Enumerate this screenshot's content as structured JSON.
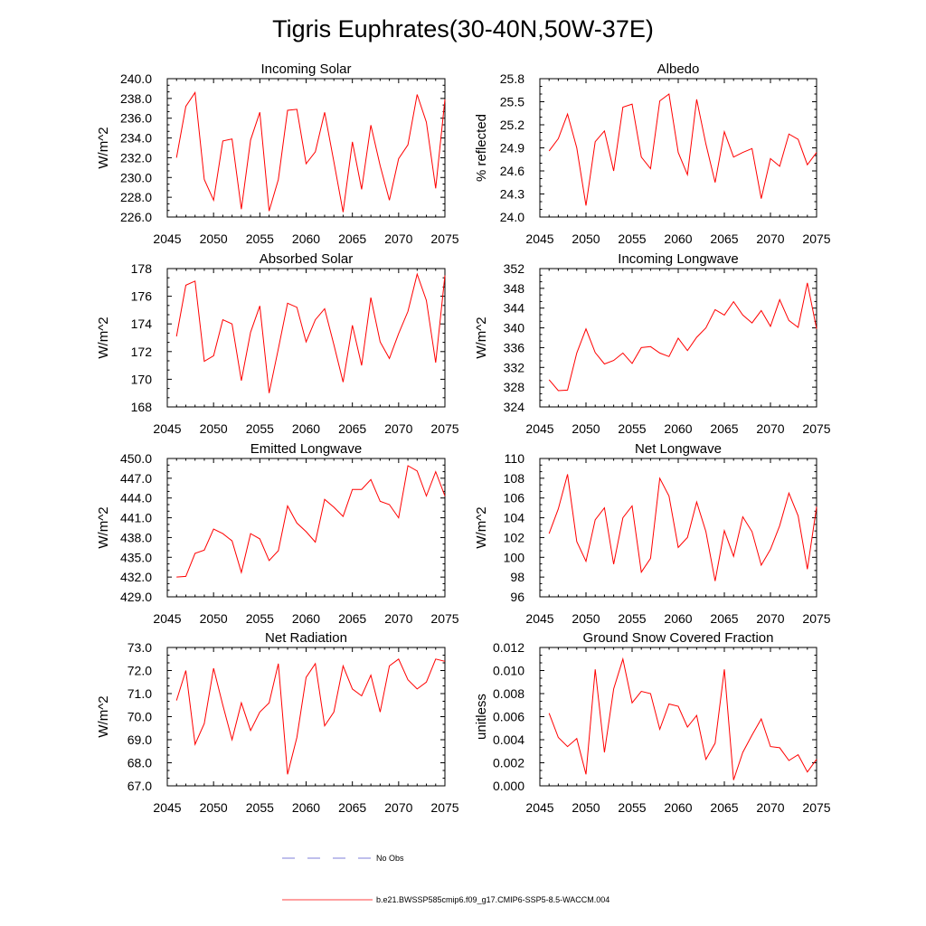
{
  "title": "Tigris Euphrates(30-40N,50W-37E)",
  "colors": {
    "model": "#ff0000",
    "obs": "#5555cc",
    "frame": "#000000"
  },
  "legend": {
    "obs_label": "No Obs",
    "model_label": "b.e21.BWSSP585cmip6.f09_g17.CMIP6-SSP5-8.5-WACCM.004"
  },
  "chart_data": [
    {
      "type": "line",
      "title": "Incoming Solar",
      "ylabel": "W/m^2",
      "xlim": [
        2045,
        2075
      ],
      "xticks": [
        2045,
        2050,
        2055,
        2060,
        2065,
        2070,
        2075
      ],
      "ylim": [
        226,
        240
      ],
      "yticks": [
        226,
        228,
        230,
        232,
        234,
        236,
        238,
        240
      ],
      "ydecimals": 1,
      "x": [
        2046,
        2047,
        2048,
        2049,
        2050,
        2051,
        2052,
        2053,
        2054,
        2055,
        2056,
        2057,
        2058,
        2059,
        2060,
        2061,
        2062,
        2063,
        2064,
        2065,
        2066,
        2067,
        2068,
        2069,
        2070,
        2071,
        2072,
        2073,
        2074,
        2075
      ],
      "values": [
        232.0,
        237.2,
        238.6,
        229.8,
        227.7,
        233.7,
        233.9,
        226.8,
        233.8,
        236.6,
        226.6,
        229.8,
        236.8,
        236.9,
        231.4,
        232.6,
        236.6,
        231.6,
        226.5,
        233.6,
        228.8,
        235.3,
        231.2,
        227.7,
        231.9,
        233.3,
        238.4,
        235.6,
        228.9,
        237.9
      ]
    },
    {
      "type": "line",
      "title": "Albedo",
      "ylabel": "% reflected",
      "xlim": [
        2045,
        2075
      ],
      "xticks": [
        2045,
        2050,
        2055,
        2060,
        2065,
        2070,
        2075
      ],
      "ylim": [
        24.0,
        25.8
      ],
      "yticks": [
        24.0,
        24.3,
        24.6,
        24.9,
        25.2,
        25.5,
        25.8
      ],
      "ydecimals": 1,
      "x": [
        2046,
        2047,
        2048,
        2049,
        2050,
        2051,
        2052,
        2053,
        2054,
        2055,
        2056,
        2057,
        2058,
        2059,
        2060,
        2061,
        2062,
        2063,
        2064,
        2065,
        2066,
        2067,
        2068,
        2069,
        2070,
        2071,
        2072,
        2073,
        2074,
        2075
      ],
      "values": [
        24.86,
        25.02,
        25.34,
        24.9,
        24.15,
        24.98,
        25.12,
        24.6,
        25.43,
        25.47,
        24.78,
        24.63,
        25.51,
        25.6,
        24.84,
        24.55,
        25.53,
        24.95,
        24.45,
        25.11,
        24.78,
        24.84,
        24.89,
        24.24,
        24.76,
        24.66,
        25.08,
        25.01,
        24.68,
        24.84
      ]
    },
    {
      "type": "line",
      "title": "Absorbed Solar",
      "ylabel": "W/m^2",
      "xlim": [
        2045,
        2075
      ],
      "xticks": [
        2045,
        2050,
        2055,
        2060,
        2065,
        2070,
        2075
      ],
      "ylim": [
        168,
        178
      ],
      "yticks": [
        168,
        170,
        172,
        174,
        176,
        178
      ],
      "ydecimals": 0,
      "x": [
        2046,
        2047,
        2048,
        2049,
        2050,
        2051,
        2052,
        2053,
        2054,
        2055,
        2056,
        2057,
        2058,
        2059,
        2060,
        2061,
        2062,
        2063,
        2064,
        2065,
        2066,
        2067,
        2068,
        2069,
        2070,
        2071,
        2072,
        2073,
        2074,
        2075
      ],
      "values": [
        173.1,
        176.8,
        177.1,
        171.3,
        171.7,
        174.3,
        174.0,
        169.9,
        173.4,
        175.3,
        169.0,
        172.2,
        175.5,
        175.2,
        172.7,
        174.3,
        175.1,
        172.5,
        169.8,
        173.9,
        171.0,
        175.9,
        172.7,
        171.5,
        173.3,
        174.9,
        177.6,
        175.7,
        171.2,
        177.5
      ]
    },
    {
      "type": "line",
      "title": "Incoming Longwave",
      "ylabel": "W/m^2",
      "xlim": [
        2045,
        2075
      ],
      "xticks": [
        2045,
        2050,
        2055,
        2060,
        2065,
        2070,
        2075
      ],
      "ylim": [
        324,
        352
      ],
      "yticks": [
        324,
        328,
        332,
        336,
        340,
        344,
        348,
        352
      ],
      "ydecimals": 0,
      "x": [
        2046,
        2047,
        2048,
        2049,
        2050,
        2051,
        2052,
        2053,
        2054,
        2055,
        2056,
        2057,
        2058,
        2059,
        2060,
        2061,
        2062,
        2063,
        2064,
        2065,
        2066,
        2067,
        2068,
        2069,
        2070,
        2071,
        2072,
        2073,
        2074,
        2075
      ],
      "values": [
        329.5,
        327.3,
        327.4,
        334.9,
        339.8,
        335.0,
        332.7,
        333.4,
        334.9,
        332.8,
        336.0,
        336.2,
        334.9,
        334.2,
        337.9,
        335.4,
        338.1,
        340.0,
        343.7,
        342.6,
        345.3,
        342.6,
        341.0,
        343.5,
        340.3,
        345.7,
        341.5,
        340.1,
        349.1,
        339.8
      ]
    },
    {
      "type": "line",
      "title": "Emitted Longwave",
      "ylabel": "W/m^2",
      "xlim": [
        2045,
        2075
      ],
      "xticks": [
        2045,
        2050,
        2055,
        2060,
        2065,
        2070,
        2075
      ],
      "ylim": [
        429,
        450
      ],
      "yticks": [
        429,
        432,
        435,
        438,
        441,
        444,
        447,
        450
      ],
      "ydecimals": 1,
      "x": [
        2046,
        2047,
        2048,
        2049,
        2050,
        2051,
        2052,
        2053,
        2054,
        2055,
        2056,
        2057,
        2058,
        2059,
        2060,
        2061,
        2062,
        2063,
        2064,
        2065,
        2066,
        2067,
        2068,
        2069,
        2070,
        2071,
        2072,
        2073,
        2074,
        2075
      ],
      "values": [
        432.0,
        432.1,
        435.6,
        436.1,
        439.3,
        438.6,
        437.5,
        432.7,
        438.6,
        437.8,
        434.5,
        436.0,
        442.8,
        440.2,
        438.9,
        437.3,
        443.8,
        442.6,
        441.2,
        445.3,
        445.3,
        446.8,
        443.5,
        443.0,
        441.0,
        448.9,
        448.1,
        444.3,
        448.0,
        444.3
      ]
    },
    {
      "type": "line",
      "title": "Net Longwave",
      "ylabel": "W/m^2",
      "xlim": [
        2045,
        2075
      ],
      "xticks": [
        2045,
        2050,
        2055,
        2060,
        2065,
        2070,
        2075
      ],
      "ylim": [
        96,
        110
      ],
      "yticks": [
        96,
        98,
        100,
        102,
        104,
        106,
        108,
        110
      ],
      "ydecimals": 0,
      "x": [
        2046,
        2047,
        2048,
        2049,
        2050,
        2051,
        2052,
        2053,
        2054,
        2055,
        2056,
        2057,
        2058,
        2059,
        2060,
        2061,
        2062,
        2063,
        2064,
        2065,
        2066,
        2067,
        2068,
        2069,
        2070,
        2071,
        2072,
        2073,
        2074,
        2075
      ],
      "values": [
        102.4,
        104.9,
        108.4,
        101.6,
        99.6,
        103.8,
        105.0,
        99.3,
        104.0,
        105.2,
        98.5,
        99.9,
        108.0,
        106.2,
        101.0,
        102.0,
        105.6,
        102.6,
        97.6,
        102.7,
        100.1,
        104.1,
        102.6,
        99.2,
        100.8,
        103.2,
        106.5,
        104.2,
        98.8,
        105.1
      ]
    },
    {
      "type": "line",
      "title": "Net Radiation",
      "ylabel": "W/m^2",
      "xlim": [
        2045,
        2075
      ],
      "xticks": [
        2045,
        2050,
        2055,
        2060,
        2065,
        2070,
        2075
      ],
      "ylim": [
        67,
        73
      ],
      "yticks": [
        67,
        68,
        69,
        70,
        71,
        72,
        73
      ],
      "ydecimals": 1,
      "x": [
        2046,
        2047,
        2048,
        2049,
        2050,
        2051,
        2052,
        2053,
        2054,
        2055,
        2056,
        2057,
        2058,
        2059,
        2060,
        2061,
        2062,
        2063,
        2064,
        2065,
        2066,
        2067,
        2068,
        2069,
        2070,
        2071,
        2072,
        2073,
        2074,
        2075
      ],
      "values": [
        70.7,
        72.0,
        68.8,
        69.7,
        72.1,
        70.5,
        69.0,
        70.6,
        69.4,
        70.2,
        70.6,
        72.3,
        67.5,
        69.1,
        71.7,
        72.3,
        69.6,
        70.2,
        72.2,
        71.2,
        70.9,
        71.8,
        70.2,
        72.2,
        72.5,
        71.6,
        71.2,
        71.5,
        72.5,
        72.4
      ]
    },
    {
      "type": "line",
      "title": "Ground Snow Covered Fraction",
      "ylabel": "unitless",
      "xlim": [
        2045,
        2075
      ],
      "xticks": [
        2045,
        2050,
        2055,
        2060,
        2065,
        2070,
        2075
      ],
      "ylim": [
        0.0,
        0.012
      ],
      "yticks": [
        0.0,
        0.002,
        0.004,
        0.006,
        0.008,
        0.01,
        0.012
      ],
      "ydecimals": 3,
      "x": [
        2046,
        2047,
        2048,
        2049,
        2050,
        2051,
        2052,
        2053,
        2054,
        2055,
        2056,
        2057,
        2058,
        2059,
        2060,
        2061,
        2062,
        2063,
        2064,
        2065,
        2066,
        2067,
        2068,
        2069,
        2070,
        2071,
        2072,
        2073,
        2074,
        2075
      ],
      "values": [
        0.0063,
        0.0042,
        0.0034,
        0.0041,
        0.001,
        0.0101,
        0.0029,
        0.0084,
        0.011,
        0.0072,
        0.0082,
        0.008,
        0.0049,
        0.0071,
        0.0069,
        0.0051,
        0.0061,
        0.0023,
        0.0037,
        0.0101,
        0.0005,
        0.0029,
        0.0044,
        0.0058,
        0.0034,
        0.0033,
        0.0022,
        0.0027,
        0.0012,
        0.0023
      ]
    }
  ]
}
